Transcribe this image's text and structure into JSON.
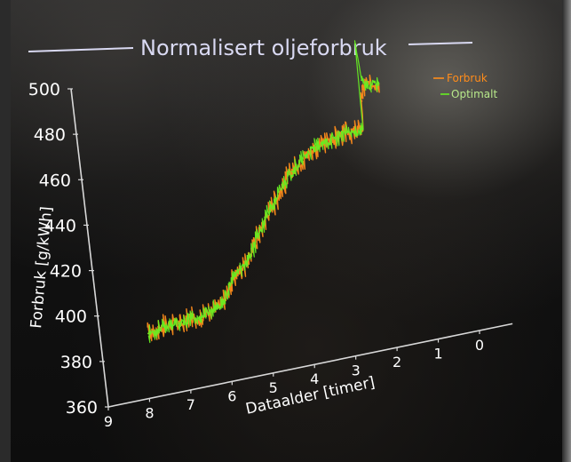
{
  "chart_data": {
    "type": "line",
    "title": "Normalisert oljeforbruk",
    "xlabel": "Dataalder [timer]",
    "ylabel": "Forbruk [g/kWh]",
    "xlim": [
      9,
      0
    ],
    "ylim": [
      360,
      500
    ],
    "x_ticks": [
      "9",
      "8",
      "7",
      "6",
      "5",
      "4",
      "3",
      "2",
      "1",
      "0"
    ],
    "y_ticks": [
      "360",
      "380",
      "400",
      "420",
      "440",
      "460",
      "480",
      "500"
    ],
    "legend_position": "top-right",
    "series": [
      {
        "name": "Forbruk",
        "color": "#ff8c1a",
        "x": [
          7.85,
          7.6,
          7.3,
          7.0,
          6.8,
          6.6,
          6.4,
          6.2,
          6.0,
          5.8,
          5.6,
          5.4,
          5.2,
          5.0,
          4.8,
          4.6,
          4.4,
          4.2,
          4.0,
          3.8,
          3.6,
          3.4,
          3.2,
          3.0,
          2.8,
          2.6,
          2.4,
          2.25,
          2.2,
          2.15,
          2.1,
          2.0,
          1.9,
          1.8,
          1.7
        ],
        "values": [
          388,
          389,
          390,
          389,
          391,
          390,
          392,
          393,
          394,
          401,
          406,
          409,
          413,
          420,
          426,
          431,
          436,
          441,
          445,
          448,
          451,
          453,
          454,
          455,
          456,
          457,
          456,
          457,
          458,
          469,
          474,
          476,
          475,
          476,
          475
        ]
      },
      {
        "name": "Optimalt",
        "color": "#66ee22",
        "x": [
          7.85,
          7.6,
          7.3,
          7.0,
          6.8,
          6.6,
          6.4,
          6.2,
          6.0,
          5.8,
          5.6,
          5.4,
          5.2,
          5.0,
          4.8,
          4.6,
          4.4,
          4.2,
          4.0,
          3.8,
          3.6,
          3.4,
          3.2,
          3.0,
          2.8,
          2.6,
          2.4,
          2.25,
          2.2,
          2.15,
          2.1,
          2.0,
          1.9,
          1.8,
          1.7
        ],
        "values": [
          388,
          389,
          390,
          389,
          391,
          390,
          392,
          393,
          394,
          401,
          406,
          409,
          413,
          420,
          426,
          431,
          436,
          441,
          445,
          448,
          451,
          453,
          454,
          455,
          456,
          457,
          456,
          457,
          458,
          494,
          478,
          476,
          475,
          476,
          475
        ]
      }
    ]
  }
}
